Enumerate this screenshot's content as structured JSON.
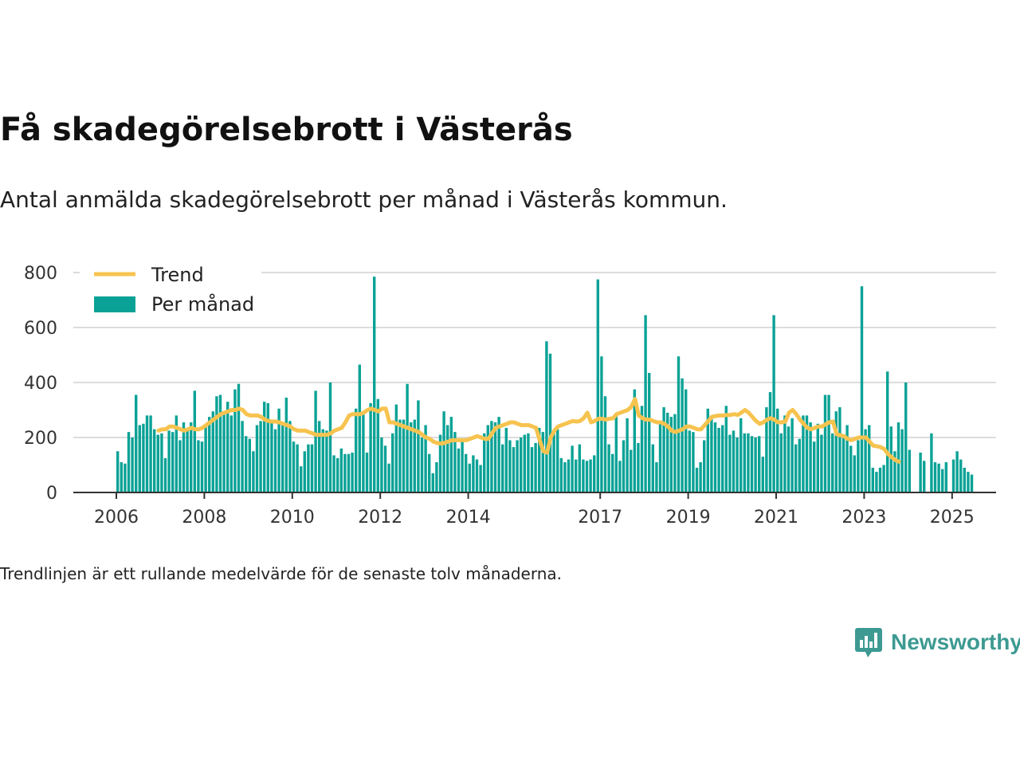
{
  "title": "Få skadegörelsebrott i Västerås",
  "subtitle": "Antal anmälda skadegörelsebrott per månad i Västerås kommun.",
  "note": "Trendlinjen är ett rullande medelvärde för de senaste tolv månaderna.",
  "brand": "Newsworthy",
  "colors": {
    "bar": "#0aa296",
    "trend": "#f7c34f",
    "grid": "#dcdcdc",
    "axis": "#333333",
    "brand": "#3d9a92"
  },
  "chart_data": {
    "type": "bar",
    "x_start": "2006-01",
    "ylim": [
      0,
      800
    ],
    "yticks": [
      0,
      200,
      400,
      600,
      800
    ],
    "xticks": [
      "2006",
      "2008",
      "2010",
      "2012",
      "2014",
      "2017",
      "2019",
      "2021",
      "2023",
      "2025"
    ],
    "grid": true,
    "legend_position": "top-left",
    "series": [
      {
        "name": "Per månad",
        "type": "bar",
        "values": [
          150,
          110,
          105,
          220,
          200,
          355,
          245,
          250,
          280,
          280,
          230,
          210,
          215,
          125,
          225,
          220,
          280,
          190,
          255,
          225,
          255,
          370,
          190,
          185,
          245,
          275,
          295,
          350,
          355,
          290,
          330,
          280,
          375,
          395,
          260,
          205,
          195,
          150,
          245,
          260,
          330,
          325,
          255,
          230,
          305,
          255,
          345,
          260,
          185,
          175,
          95,
          150,
          175,
          175,
          370,
          260,
          230,
          225,
          400,
          135,
          125,
          160,
          140,
          140,
          145,
          305,
          465,
          285,
          145,
          325,
          785,
          340,
          200,
          170,
          105,
          215,
          320,
          265,
          265,
          395,
          255,
          265,
          335,
          200,
          245,
          140,
          70,
          110,
          210,
          295,
          245,
          275,
          220,
          160,
          185,
          140,
          105,
          135,
          120,
          100,
          215,
          245,
          260,
          255,
          275,
          175,
          235,
          190,
          165,
          190,
          200,
          210,
          215,
          165,
          180,
          235,
          220,
          550,
          505,
          225,
          230,
          125,
          110,
          120,
          170,
          120,
          175,
          120,
          115,
          120,
          135,
          775,
          495,
          350,
          175,
          140,
          290,
          115,
          190,
          270,
          155,
          375,
          180,
          315,
          645,
          435,
          175,
          110,
          250,
          310,
          290,
          275,
          285,
          495,
          415,
          375,
          225,
          220,
          90,
          110,
          190,
          305,
          280,
          255,
          235,
          245,
          315,
          210,
          225,
          200,
          270,
          215,
          215,
          205,
          200,
          205,
          130,
          310,
          365,
          645,
          305,
          215,
          280,
          240,
          270,
          175,
          195,
          280,
          280,
          255,
          185,
          250,
          210,
          355,
          355,
          215,
          295,
          310,
          210,
          245,
          170,
          135,
          190,
          750,
          230,
          245,
          90,
          75,
          90,
          100,
          440,
          240,
          150,
          255,
          230,
          400,
          155,
          0,
          0,
          145,
          115,
          0,
          215,
          110,
          105,
          85,
          110,
          0,
          120,
          150,
          120,
          90,
          75,
          65
        ]
      },
      {
        "name": "Trend",
        "type": "line",
        "values": [
          225,
          230,
          230,
          240,
          240,
          235,
          230,
          225,
          230,
          235,
          230,
          230,
          235,
          245,
          255,
          265,
          275,
          285,
          290,
          295,
          300,
          300,
          305,
          300,
          285,
          280,
          280,
          280,
          275,
          265,
          260,
          258,
          258,
          255,
          250,
          245,
          240,
          230,
          225,
          225,
          225,
          220,
          215,
          210,
          210,
          210,
          210,
          215,
          225,
          230,
          235,
          255,
          280,
          285,
          285,
          285,
          290,
          300,
          305,
          300,
          295,
          305,
          305,
          255,
          255,
          250,
          245,
          240,
          235,
          230,
          225,
          220,
          210,
          200,
          195,
          185,
          180,
          178,
          180,
          185,
          190,
          190,
          190,
          190,
          190,
          195,
          200,
          205,
          200,
          195,
          195,
          215,
          235,
          240,
          245,
          250,
          255,
          255,
          250,
          245,
          245,
          245,
          240,
          235,
          190,
          150,
          145,
          200,
          225,
          240,
          245,
          250,
          255,
          260,
          258,
          260,
          270,
          290,
          255,
          260,
          268,
          268,
          265,
          268,
          270,
          285,
          290,
          295,
          300,
          312,
          340,
          280,
          270,
          265,
          265,
          260,
          255,
          255,
          250,
          240,
          225,
          220,
          225,
          230,
          240,
          240,
          235,
          230,
          230,
          245,
          260,
          275,
          278,
          280,
          280,
          282,
          282,
          285,
          282,
          290,
          300,
          290,
          275,
          260,
          250,
          255,
          265,
          270,
          265,
          255,
          255,
          258,
          290,
          300,
          285,
          265,
          250,
          235,
          230,
          235,
          240,
          240,
          248,
          255,
          258,
          212,
          208,
          205,
          195,
          190,
          195,
          200,
          200,
          200,
          185,
          170,
          168,
          165,
          158,
          140,
          128,
          118,
          112
        ]
      }
    ]
  }
}
